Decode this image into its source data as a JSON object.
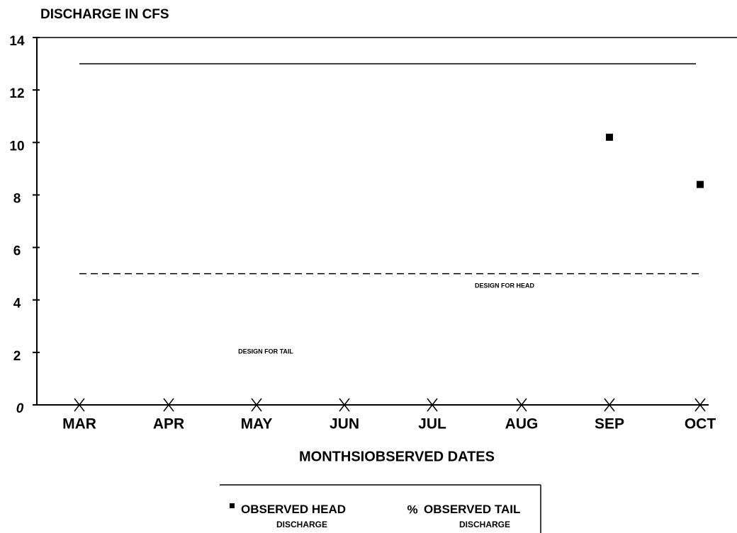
{
  "chart_data": {
    "type": "scatter",
    "title": "DISCHARGE IN CFS",
    "x_label": "MONTHSIOBSERVED DATES",
    "categories": [
      "MAR",
      "APR",
      "MAY",
      "JUN",
      "JUL",
      "AUG",
      "SEP",
      "OCT"
    ],
    "ylim": [
      0,
      14
    ],
    "yticks": [
      0,
      2,
      4,
      6,
      8,
      10,
      12,
      14
    ],
    "series": [
      {
        "name": "OBSERVED HEAD DISCHARGE",
        "color": "#000000",
        "marker": "square",
        "values": [
          null,
          null,
          null,
          null,
          null,
          null,
          10.2,
          8.4
        ]
      },
      {
        "name": "OBSERVED TAIL DISCHARGE",
        "color": "#000000",
        "marker": "asterisk",
        "values": [
          0,
          0,
          0,
          0,
          0,
          0,
          0,
          0
        ]
      }
    ],
    "reference_lines": [
      {
        "value": 13,
        "style": "solid"
      },
      {
        "value": 5,
        "style": "dashed"
      }
    ],
    "annotations": [
      "DESIGN FOR HEAD",
      "DESIGN FOR TAIL"
    ]
  }
}
